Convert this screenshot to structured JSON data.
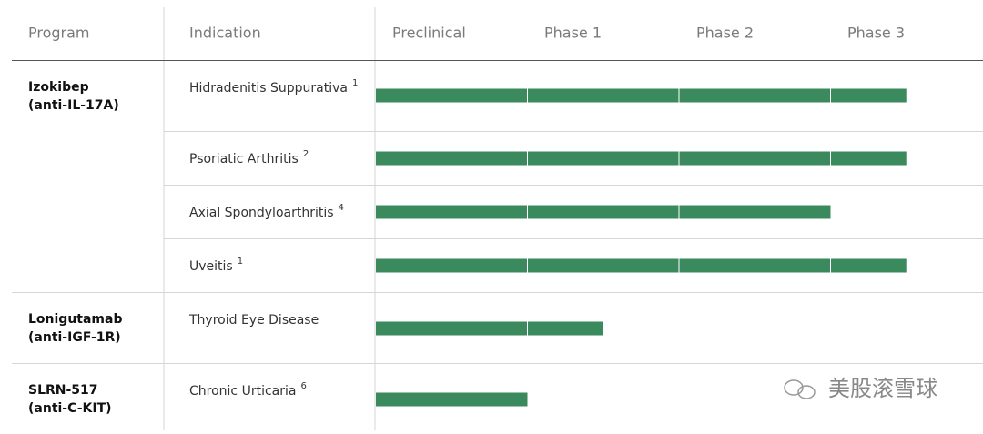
{
  "header": {
    "columns": [
      "Program",
      "Indication",
      "Preclinical",
      "Phase 1",
      "Phase 2",
      "Phase 3"
    ]
  },
  "bar_color": "#3b8a5e",
  "groups": [
    {
      "program": "Izokibep",
      "target": "(anti-IL-17A)",
      "indications": [
        {
          "name": "Hidradenitis Suppurativa",
          "note": "1",
          "progress": 3.5
        },
        {
          "name": "Psoriatic Arthritis",
          "note": "2",
          "progress": 3.5
        },
        {
          "name": "Axial Spondyloarthritis",
          "note": "4",
          "progress": 3.0
        },
        {
          "name": "Uveitis",
          "note": "1",
          "progress": 3.5
        }
      ]
    },
    {
      "program": "Lonigutamab",
      "target": "(anti-IGF-1R)",
      "indications": [
        {
          "name": "Thyroid Eye Disease",
          "progress": 1.5
        }
      ]
    },
    {
      "program": "SLRN-517",
      "target": "(anti-C-KIT)",
      "indications": [
        {
          "name": "Chronic Urticaria",
          "note": "6",
          "progress": 1.0
        }
      ]
    }
  ],
  "watermark": "美股滚雪球"
}
